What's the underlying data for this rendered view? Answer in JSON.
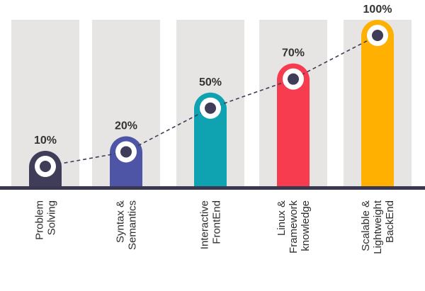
{
  "chart_data": {
    "type": "bar",
    "categories": [
      [
        "Problem",
        "Solving"
      ],
      [
        "Syntax &",
        "Semantics"
      ],
      [
        "Interactive",
        "FrontEnd"
      ],
      [
        "Linux &",
        "Framework",
        "knowledge"
      ],
      [
        "Scalable &",
        "Lightweight",
        "BackEnd"
      ]
    ],
    "values": [
      10,
      20,
      50,
      70,
      100
    ],
    "value_labels": [
      "10%",
      "20%",
      "50%",
      "70%",
      "100%"
    ],
    "ylim": [
      0,
      100
    ],
    "title": "",
    "xlabel": "",
    "ylabel": "",
    "grid": false,
    "legend": "none",
    "trend_line": "dashed",
    "colors": {
      "bars": [
        "#3f3d57",
        "#4f55a6",
        "#0fa3b1",
        "#f63c4e",
        "#ffb000"
      ],
      "column_background": "#e6e5e3",
      "baseline": "#3a3850",
      "marker_ring": "#ffffff",
      "marker_dot": "#3f3d57",
      "trend": "#3f3d57",
      "text": "#333333"
    }
  }
}
